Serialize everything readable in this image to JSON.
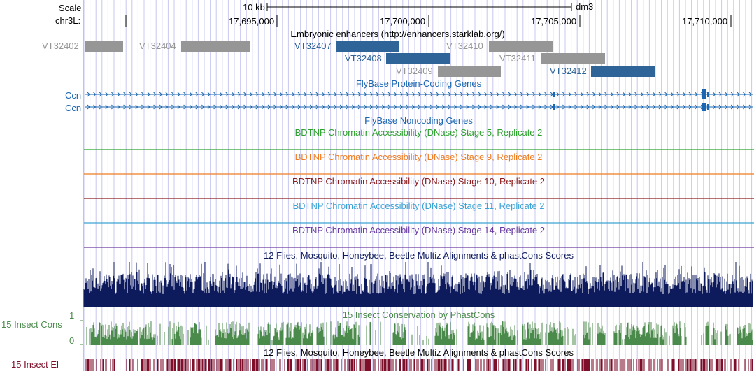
{
  "ruler": {
    "scale_label": "Scale",
    "chrom_label": "chr3L:",
    "scale_bar_text": "10 kb",
    "assembly": "dm3",
    "positions": [
      "17,695,000",
      "17,700,000",
      "17,705,000",
      "17,710,000"
    ]
  },
  "enhancers": {
    "title": "Embryonic enhancers (http://enhancers.starklab.org/)",
    "items": [
      {
        "name": "VT32402",
        "label": "VT32402",
        "highlight": false
      },
      {
        "name": "VT32404",
        "label": "VT32404",
        "highlight": false
      },
      {
        "name": "VT32407",
        "label": "VT32407",
        "highlight": true
      },
      {
        "name": "VT32408",
        "label": "VT32408",
        "highlight": true
      },
      {
        "name": "VT32409",
        "label": "VT32409",
        "highlight": false
      },
      {
        "name": "VT32410",
        "label": "VT32410",
        "highlight": false
      },
      {
        "name": "VT32411",
        "label": "VT32411",
        "highlight": false
      },
      {
        "name": "VT32412",
        "label": "VT32412",
        "highlight": true
      }
    ]
  },
  "genes": {
    "protein_coding_title": "FlyBase Protein-Coding Genes",
    "transcripts": [
      "Ccn",
      "Ccn"
    ],
    "noncoding_title": "FlyBase Noncoding Genes"
  },
  "dnase_tracks": [
    {
      "title": "BDTNP Chromatin Accessibility (DNase) Stage 5, Replicate 2",
      "color": "#2ca02c"
    },
    {
      "title": "BDTNP Chromatin Accessibility (DNase) Stage 9, Replicate 2",
      "color": "#f07c21"
    },
    {
      "title": "BDTNP Chromatin Accessibility (DNase) Stage 10, Replicate 2",
      "color": "#8b1a1a"
    },
    {
      "title": "BDTNP Chromatin Accessibility (DNase) Stage 11, Replicate 2",
      "color": "#3ba3d4"
    },
    {
      "title": "BDTNP Chromatin Accessibility (DNase) Stage 14, Replicate 2",
      "color": "#6a3aa2"
    }
  ],
  "multiz": {
    "title": "12 Flies, Mosquito, Honeybee, Beetle Multiz Alignments & phastCons Scores",
    "color": "#0d1a5c"
  },
  "insect_cons": {
    "title": "15 Insect Conservation by PhastCons",
    "side_label": "15 Insect Cons",
    "ymax_label": "1",
    "ymin_label": "0",
    "color": "#4a8a4a"
  },
  "insect_el": {
    "title": "12 Flies, Mosquito, Honeybee, Beetle Multiz Alignments & phastCons Scores",
    "side_label": "15 Insect El",
    "color": "#7d0f2a"
  },
  "colors": {
    "enhancer_highlight": "#2f6498",
    "enhancer_gray": "#969696",
    "gene_blue": "#1a66b0",
    "guide_blue": "#c8c8f0",
    "guide_red": "#f0b4b4"
  }
}
